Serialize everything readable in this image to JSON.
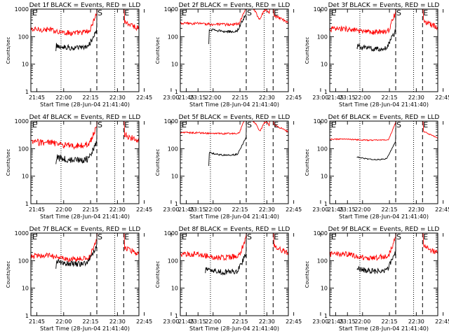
{
  "layout_grid": {
    "columns": 3,
    "rows": 3
  },
  "shared": {
    "ylabel": "Counts/sec",
    "xlabel": "Start Time (28-Jun-04 21:41:40)",
    "ylim": [
      1,
      1000
    ],
    "yscale": "log",
    "y_ticks": [
      "1",
      "10",
      "100",
      "1000"
    ],
    "x_ticks": [
      "21:45",
      "22:00",
      "22:15",
      "22:30",
      "22:45",
      "23:00",
      "23:15"
    ],
    "x_range_min": [
      41.67,
      102
    ],
    "vertical_lines_min": {
      "dotted": [
        58.5,
        88.5
      ],
      "dashed": [
        78.5,
        93.5
      ]
    },
    "markers": {
      "start": "S",
      "end": "E",
      "left_edge": "E"
    },
    "colors": {
      "events": "#000000",
      "lld": "#ff0000",
      "axes": "#000000",
      "background": "#ffffff"
    }
  },
  "chart_data": [
    {
      "type": "line",
      "title": "Det 1f BLACK = Events, RED = LLD",
      "variant": "std",
      "lld_base": 180,
      "evt_base": 48,
      "evt_start_min": 55.5,
      "noise": 0.1
    },
    {
      "type": "line",
      "title": "Det 2f BLACK = Events, RED = LLD",
      "variant": "flat",
      "lld_base": 300,
      "evt_base": 190,
      "evt_start_min": 57.5,
      "noise": 0.05
    },
    {
      "type": "line",
      "title": "Det 3f BLACK = Events, RED = LLD",
      "variant": "std",
      "lld_base": 190,
      "evt_base": 45,
      "evt_start_min": 56.5,
      "noise": 0.1
    },
    {
      "type": "line",
      "title": "Det 4f BLACK = Events, RED = LLD",
      "variant": "std",
      "lld_base": 170,
      "evt_base": 48,
      "evt_start_min": 55.5,
      "noise": 0.12
    },
    {
      "type": "line",
      "title": "Det 5f BLACK = Events, RED = LLD",
      "variant": "flat",
      "lld_base": 380,
      "evt_base": 72,
      "evt_start_min": 57.5,
      "noise": 0.03
    },
    {
      "type": "line",
      "title": "Det 6f BLACK = Events, RED = LLD",
      "variant": "smooth",
      "lld_base": 220,
      "evt_base": 50,
      "evt_start_min": 56.5,
      "noise": 0.02
    },
    {
      "type": "line",
      "title": "Det 7f BLACK = Events, RED = LLD",
      "variant": "std",
      "lld_base": 150,
      "evt_base": 95,
      "evt_start_min": 55.5,
      "noise": 0.1
    },
    {
      "type": "line",
      "title": "Det 8f BLACK = Events, RED = LLD",
      "variant": "std",
      "lld_base": 170,
      "evt_base": 48,
      "evt_start_min": 55.5,
      "noise": 0.1
    },
    {
      "type": "line",
      "title": "Det 9f BLACK = Events, RED = LLD",
      "variant": "std",
      "lld_base": 170,
      "evt_base": 52,
      "evt_start_min": 56.5,
      "noise": 0.1
    }
  ]
}
